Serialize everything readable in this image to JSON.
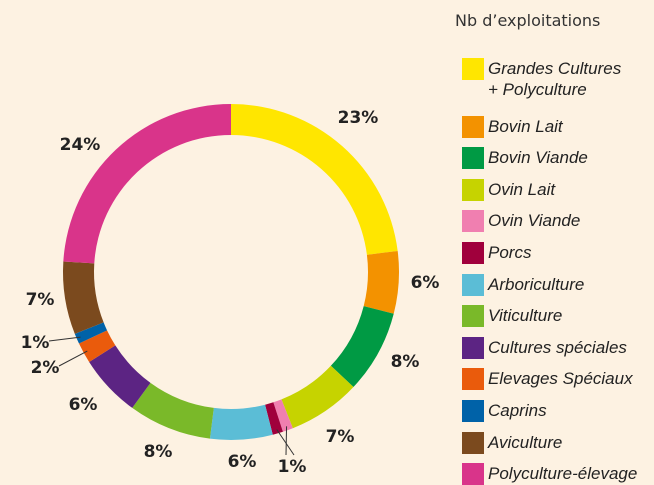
{
  "chart_data": {
    "type": "donut",
    "legend_title": "Nb d’exploitations",
    "categories": [
      "Grandes Cultures\n+ Polyculture",
      "Bovin Lait",
      "Bovin Viande",
      "Ovin Lait",
      "Ovin Viande",
      "Porcs",
      "Arboriculture",
      "Viticulture",
      "Cultures spéciales",
      "Elevages Spéciaux",
      "Caprins",
      "Aviculture",
      "Polyculture-élevage"
    ],
    "values": [
      23,
      6,
      8,
      7,
      1,
      1,
      6,
      8,
      6,
      2,
      1,
      7,
      24
    ],
    "value_labels": [
      "23%",
      "6%",
      "8%",
      "7%",
      "1%",
      null,
      "6%",
      "8%",
      "6%",
      "2%",
      "1%",
      "7%",
      "24%"
    ],
    "colors": [
      "#ffe600",
      "#f39200",
      "#009a44",
      "#c6d300",
      "#f07fb0",
      "#a0003c",
      "#5bbdd6",
      "#7ab929",
      "#5c2483",
      "#ea5b0c",
      "#0062a8",
      "#7b4a1e",
      "#d9348a"
    ],
    "legend": "right"
  }
}
